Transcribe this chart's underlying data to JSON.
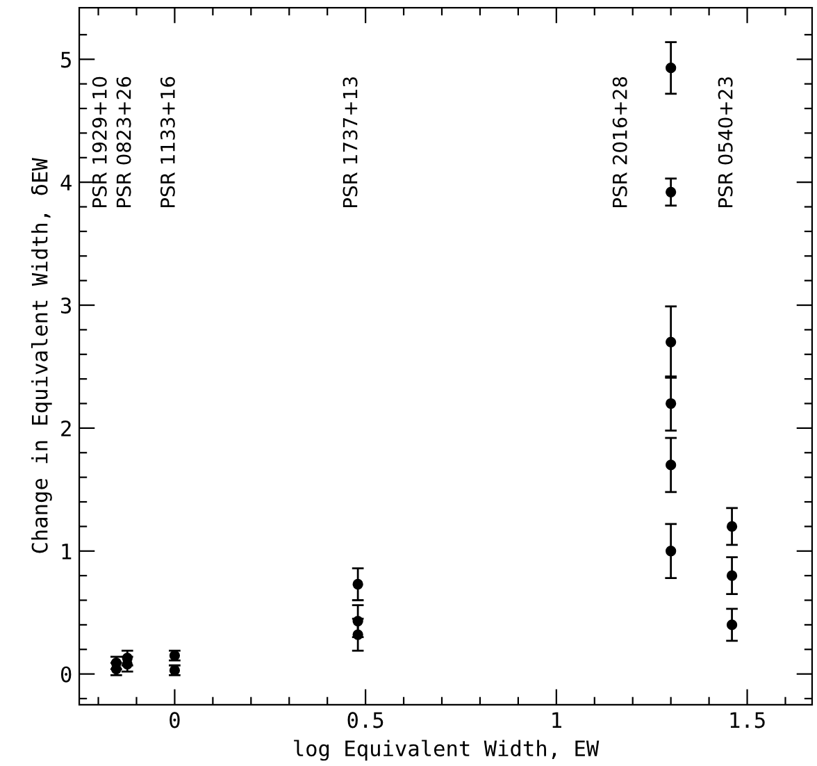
{
  "chart_data": {
    "type": "scatter",
    "xlabel": "log Equivalent Width, EW",
    "ylabel": "Change in Equivalent Width, δEW",
    "series": [
      {
        "color": "#000000",
        "x": [
          -0.153,
          -0.153,
          -0.124,
          -0.124,
          0.0,
          0.0,
          0.48,
          0.48,
          0.48,
          1.3,
          1.3,
          1.3,
          1.3,
          1.3,
          1.3,
          1.46,
          1.46,
          1.46
        ],
        "values": [
          0.04,
          0.09,
          0.08,
          0.13,
          0.15,
          0.03,
          0.73,
          0.43,
          0.32,
          4.93,
          3.92,
          2.7,
          2.2,
          1.7,
          1.0,
          1.2,
          0.8,
          0.4
        ],
        "errors": [
          0.05,
          0.05,
          0.06,
          0.06,
          0.04,
          0.04,
          0.13,
          0.13,
          0.13,
          0.21,
          0.11,
          0.29,
          0.22,
          0.22,
          0.22,
          0.15,
          0.15,
          0.13
        ]
      }
    ],
    "marker": "circle",
    "annotations": [
      "PSR 1929+10",
      "PSR 0823+26",
      "PSR 1133+16",
      "PSR 1737+13",
      "PSR 2016+28",
      "PSR 0540+23"
    ],
    "xlim": [
      -0.25,
      1.67
    ],
    "ylim": [
      -0.25,
      5.42
    ],
    "xticks": [
      {
        "value": -0.2,
        "label": null
      },
      {
        "value": -0.1,
        "label": null
      },
      0,
      {
        "value": 0.1,
        "label": null
      },
      {
        "value": 0.2,
        "label": null
      },
      {
        "value": 0.3,
        "label": null
      },
      {
        "value": 0.4,
        "label": null
      },
      0.5,
      {
        "value": 0.6,
        "label": null
      },
      {
        "value": 0.7,
        "label": null
      },
      {
        "value": 0.8,
        "label": null
      },
      {
        "value": 0.9,
        "label": null
      },
      1,
      {
        "value": 1.1,
        "label": null
      },
      {
        "value": 1.2,
        "label": null
      },
      {
        "value": 1.3,
        "label": null
      },
      {
        "value": 1.4,
        "label": null
      },
      1.5,
      {
        "value": 1.6,
        "label": null
      }
    ],
    "yticks": [
      {
        "value": -0.2,
        "label": null
      },
      0,
      {
        "value": 0.2,
        "label": null
      },
      {
        "value": 0.4,
        "label": null
      },
      {
        "value": 0.6,
        "label": null
      },
      {
        "value": 0.8,
        "label": null
      },
      1,
      {
        "value": 1.2,
        "label": null
      },
      {
        "value": 1.4,
        "label": null
      },
      {
        "value": 1.6,
        "label": null
      },
      {
        "value": 1.8,
        "label": null
      },
      2,
      {
        "value": 2.2,
        "label": null
      },
      {
        "value": 2.4,
        "label": null
      },
      {
        "value": 2.6,
        "label": null
      },
      {
        "value": 2.8,
        "label": null
      },
      3,
      {
        "value": 3.2,
        "label": null
      },
      {
        "value": 3.4,
        "label": null
      },
      {
        "value": 3.6,
        "label": null
      },
      {
        "value": 3.8,
        "label": null
      },
      4,
      {
        "value": 4.2,
        "label": null
      },
      {
        "value": 4.4,
        "label": null
      },
      {
        "value": 4.6,
        "label": null
      },
      {
        "value": 4.8,
        "label": null
      },
      5,
      {
        "value": 5.2,
        "label": null
      }
    ]
  }
}
